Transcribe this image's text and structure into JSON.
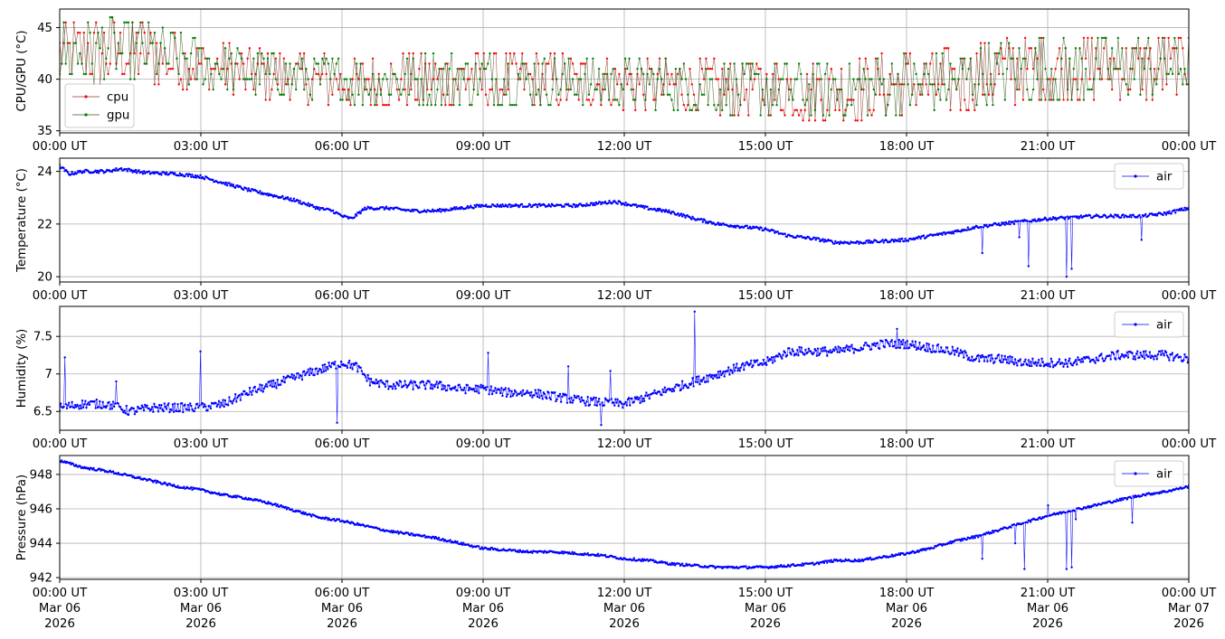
{
  "chart_data": [
    {
      "type": "line",
      "ylabel": "CPU/GPU (°C)",
      "ylim": [
        34.8,
        46.8
      ],
      "yticks": [
        35,
        40,
        45
      ],
      "xlim_hours": [
        0,
        24
      ],
      "xtick_labels": [
        "00:00 UT",
        "03:00 UT",
        "06:00 UT",
        "09:00 UT",
        "12:00 UT",
        "15:00 UT",
        "18:00 UT",
        "21:00 UT",
        "00:00 UT"
      ],
      "grid": true,
      "legend_position": "lower-left",
      "series": [
        {
          "name": "cpu",
          "color": "#ff0000",
          "line_color": "#8b3a2a",
          "profile_hours": [
            0,
            1,
            2,
            3,
            4,
            5,
            6,
            7,
            8,
            9,
            10,
            11,
            12,
            13,
            14,
            15,
            16,
            17,
            18,
            19,
            20,
            21,
            22,
            23,
            24
          ],
          "profile_low": [
            39.2,
            39.6,
            39.6,
            39.0,
            38.4,
            37.8,
            37.4,
            37.4,
            37.4,
            37.4,
            37.4,
            37.4,
            37.2,
            37.0,
            36.6,
            36.4,
            36.2,
            36.2,
            36.4,
            36.8,
            37.6,
            38.0,
            38.0,
            38.2,
            38.4
          ],
          "profile_high": [
            45.4,
            45.8,
            45.4,
            43.8,
            43.0,
            42.4,
            42.2,
            42.2,
            42.6,
            42.6,
            42.4,
            42.2,
            42.0,
            42.0,
            41.8,
            41.6,
            41.6,
            42.0,
            42.6,
            42.8,
            43.8,
            44.2,
            44.2,
            44.0,
            44.0
          ]
        },
        {
          "name": "gpu",
          "color": "#008000",
          "line_color": "#3a5a1a",
          "profile_hours": [
            0,
            1,
            2,
            3,
            4,
            5,
            6,
            7,
            8,
            9,
            10,
            11,
            12,
            13,
            14,
            15,
            16,
            17,
            18,
            19,
            20,
            21,
            22,
            23,
            24
          ],
          "profile_low": [
            39.6,
            39.8,
            39.8,
            39.4,
            38.8,
            38.2,
            37.8,
            37.6,
            37.6,
            37.6,
            37.6,
            37.6,
            37.4,
            37.0,
            36.8,
            36.6,
            36.4,
            36.4,
            36.6,
            37.0,
            37.8,
            38.2,
            38.2,
            38.4,
            38.6
          ],
          "profile_high": [
            45.4,
            45.8,
            45.4,
            43.6,
            42.8,
            42.2,
            42.0,
            42.0,
            42.4,
            42.4,
            42.2,
            42.0,
            41.8,
            41.8,
            41.6,
            41.4,
            41.4,
            41.8,
            42.4,
            42.6,
            43.6,
            44.0,
            44.0,
            43.8,
            43.8
          ]
        }
      ]
    },
    {
      "type": "line",
      "ylabel": "Temperature (°C)",
      "ylim": [
        19.8,
        24.5
      ],
      "yticks": [
        20,
        22,
        24
      ],
      "xlim_hours": [
        0,
        24
      ],
      "xtick_labels": [
        "00:00 UT",
        "03:00 UT",
        "06:00 UT",
        "09:00 UT",
        "12:00 UT",
        "15:00 UT",
        "18:00 UT",
        "21:00 UT",
        "00:00 UT"
      ],
      "grid": true,
      "legend_position": "upper-right",
      "series": [
        {
          "name": "air",
          "color": "#0000ff",
          "x_hours": [
            0,
            0.2,
            0.5,
            1.0,
            1.3,
            1.8,
            2.5,
            3.0,
            3.4,
            4.0,
            4.5,
            5.0,
            5.5,
            5.8,
            6.0,
            6.2,
            6.5,
            7.0,
            7.5,
            8.0,
            8.5,
            9.0,
            10.0,
            11.0,
            11.8,
            12.5,
            13.0,
            13.5,
            14.0,
            14.5,
            15.0,
            15.5,
            16.0,
            16.5,
            17.0,
            17.5,
            18.0,
            18.5,
            19.0,
            19.5,
            20.0,
            20.5,
            21.0,
            22.0,
            23.0,
            23.5,
            24.0
          ],
          "y": [
            24.2,
            23.9,
            24.0,
            24.0,
            24.1,
            23.95,
            23.9,
            23.8,
            23.6,
            23.3,
            23.1,
            22.9,
            22.6,
            22.5,
            22.3,
            22.2,
            22.6,
            22.6,
            22.5,
            22.5,
            22.6,
            22.7,
            22.7,
            22.7,
            22.85,
            22.6,
            22.45,
            22.2,
            22.0,
            21.9,
            21.8,
            21.55,
            21.45,
            21.3,
            21.3,
            21.35,
            21.4,
            21.55,
            21.7,
            21.9,
            22.0,
            22.1,
            22.2,
            22.3,
            22.3,
            22.4,
            22.6
          ],
          "noise": 0.06,
          "spikes": [
            [
              19.6,
              20.9
            ],
            [
              20.4,
              21.5
            ],
            [
              20.6,
              20.4
            ],
            [
              21.4,
              20.0
            ],
            [
              21.5,
              20.3
            ],
            [
              23.0,
              21.4
            ]
          ]
        }
      ]
    },
    {
      "type": "line",
      "ylabel": "Humidity (%)",
      "ylim": [
        6.25,
        7.9
      ],
      "yticks": [
        6.5,
        7.0,
        7.5
      ],
      "xlim_hours": [
        0,
        24
      ],
      "xtick_labels": [
        "00:00 UT",
        "03:00 UT",
        "06:00 UT",
        "09:00 UT",
        "12:00 UT",
        "15:00 UT",
        "18:00 UT",
        "21:00 UT",
        "00:00 UT"
      ],
      "grid": true,
      "legend_position": "upper-right",
      "series": [
        {
          "name": "air",
          "color": "#0000ff",
          "x_hours": [
            0,
            0.5,
            1.0,
            1.5,
            2.0,
            2.5,
            3.0,
            3.5,
            4.0,
            4.5,
            5.0,
            5.5,
            6.0,
            6.3,
            6.6,
            7.0,
            7.5,
            8.0,
            8.5,
            9.0,
            9.5,
            10.0,
            10.5,
            11.0,
            11.5,
            12.0,
            12.5,
            13.0,
            13.5,
            14.0,
            14.5,
            15.0,
            15.5,
            16.0,
            16.5,
            17.0,
            17.5,
            18.0,
            18.5,
            19.0,
            19.5,
            20.0,
            20.5,
            21.0,
            21.5,
            22.0,
            22.5,
            23.0,
            23.5,
            24.0
          ],
          "y": [
            6.55,
            6.6,
            6.6,
            6.5,
            6.55,
            6.55,
            6.55,
            6.6,
            6.75,
            6.85,
            6.95,
            7.05,
            7.15,
            7.1,
            6.9,
            6.85,
            6.85,
            6.85,
            6.8,
            6.8,
            6.75,
            6.75,
            6.7,
            6.65,
            6.62,
            6.6,
            6.7,
            6.8,
            6.9,
            7.0,
            7.1,
            7.15,
            7.3,
            7.3,
            7.3,
            7.35,
            7.4,
            7.4,
            7.35,
            7.3,
            7.2,
            7.2,
            7.15,
            7.15,
            7.15,
            7.2,
            7.25,
            7.25,
            7.25,
            7.2
          ],
          "noise": 0.06,
          "spikes": [
            [
              0.1,
              7.22
            ],
            [
              1.2,
              6.9
            ],
            [
              3.0,
              7.3
            ],
            [
              5.9,
              6.35
            ],
            [
              9.1,
              7.28
            ],
            [
              10.8,
              7.1
            ],
            [
              11.5,
              6.32
            ],
            [
              11.7,
              7.04
            ],
            [
              13.5,
              7.83
            ],
            [
              17.8,
              7.6
            ]
          ]
        }
      ]
    },
    {
      "type": "line",
      "ylabel": "Pressure (hPa)",
      "ylim": [
        941.9,
        949.1
      ],
      "yticks": [
        942,
        944,
        946,
        948
      ],
      "xlim_hours": [
        0,
        24
      ],
      "xtick_labels": [
        "00:00 UT",
        "03:00 UT",
        "06:00 UT",
        "09:00 UT",
        "12:00 UT",
        "15:00 UT",
        "18:00 UT",
        "21:00 UT",
        "00:00 UT"
      ],
      "xtick_dates": [
        "Mar 06",
        "Mar 06",
        "Mar 06",
        "Mar 06",
        "Mar 06",
        "Mar 06",
        "Mar 06",
        "Mar 06",
        "Mar 07"
      ],
      "xtick_years": [
        "2026",
        "2026",
        "2026",
        "2026",
        "2026",
        "2026",
        "2026",
        "2026",
        "2026"
      ],
      "grid": true,
      "legend_position": "upper-right",
      "series": [
        {
          "name": "air",
          "color": "#0000ff",
          "x_hours": [
            0,
            0.5,
            1.0,
            1.5,
            2.0,
            2.5,
            3.0,
            3.5,
            4.0,
            4.5,
            5.0,
            5.5,
            6.0,
            6.5,
            7.0,
            7.5,
            8.0,
            8.5,
            9.0,
            9.5,
            10.0,
            10.5,
            11.0,
            11.5,
            12.0,
            12.5,
            13.0,
            13.5,
            14.0,
            14.5,
            15.0,
            15.5,
            16.0,
            16.5,
            17.0,
            17.5,
            18.0,
            18.5,
            19.0,
            19.5,
            20.0,
            20.5,
            21.0,
            21.5,
            22.0,
            22.5,
            23.0,
            23.5,
            24.0
          ],
          "y": [
            948.8,
            948.4,
            948.2,
            947.9,
            947.6,
            947.3,
            947.1,
            946.8,
            946.6,
            946.3,
            945.9,
            945.5,
            945.3,
            945.0,
            944.7,
            944.5,
            944.3,
            944.0,
            943.7,
            943.6,
            943.5,
            943.5,
            943.4,
            943.3,
            943.1,
            943.0,
            942.8,
            942.7,
            942.6,
            942.6,
            942.6,
            942.7,
            942.8,
            943.0,
            943.0,
            943.2,
            943.4,
            943.7,
            944.1,
            944.4,
            944.8,
            945.2,
            945.6,
            945.9,
            946.2,
            946.5,
            946.8,
            947.0,
            947.3
          ],
          "noise": 0.07,
          "spikes": [
            [
              19.6,
              943.1
            ],
            [
              20.3,
              944.0
            ],
            [
              20.5,
              942.5
            ],
            [
              21.0,
              946.2
            ],
            [
              21.4,
              942.5
            ],
            [
              21.5,
              942.6
            ],
            [
              21.6,
              945.4
            ],
            [
              22.8,
              945.2
            ]
          ]
        }
      ]
    }
  ]
}
